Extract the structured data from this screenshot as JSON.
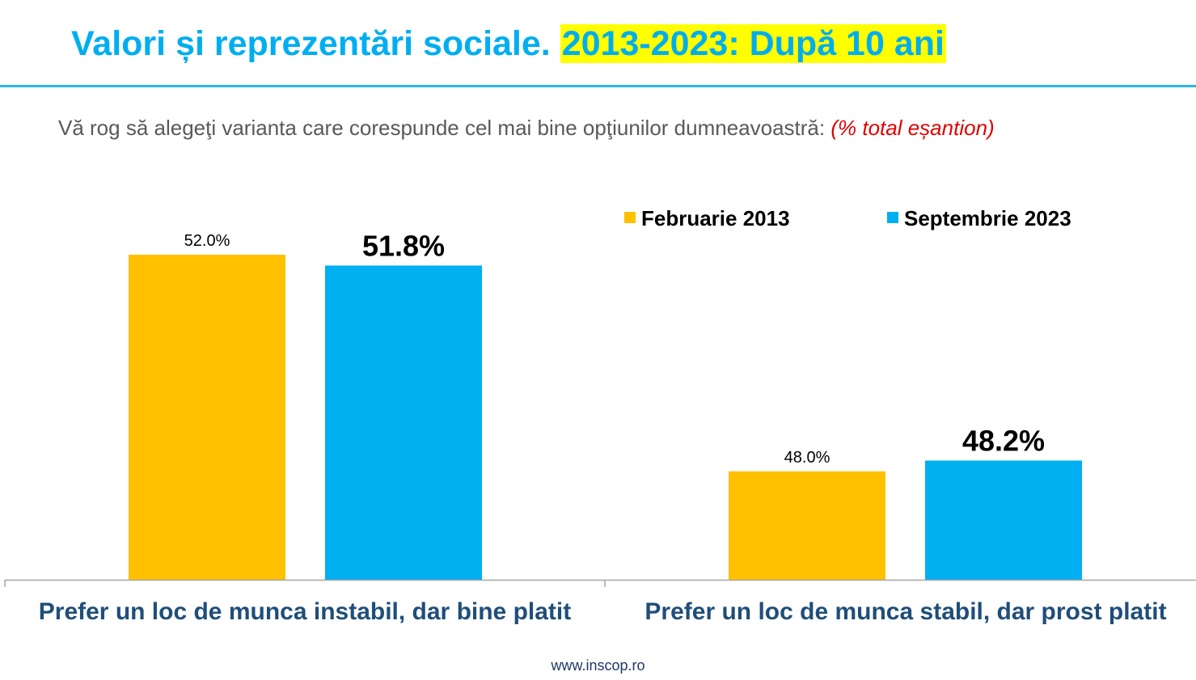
{
  "header": {
    "title_main": "Valori și reprezentări sociale.",
    "title_highlight": "2013-2023: După 10 ani",
    "question": "Vă rog să alegeţi varianta care corespunde cel mai bine opţiunilor dumneavoastră:",
    "question_note": "(% total eșantion)"
  },
  "footer": {
    "url": "www.inscop.ro"
  },
  "colors": {
    "title": "#00AEEF",
    "highlight": "#FFFF00",
    "series_2013": "#FFC000",
    "series_2023": "#00B0F0",
    "category_label": "#1F4E79",
    "note": "#E00000"
  },
  "chart_data": {
    "type": "bar",
    "categories": [
      "Prefer un loc de munca instabil, dar bine platit",
      "Prefer un loc de munca stabil, dar prost platit"
    ],
    "series": [
      {
        "name": "Februarie 2013",
        "values": [
          52.0,
          48.0
        ],
        "labels": [
          "52.0%",
          "48.0%"
        ],
        "color": "#FFC000"
      },
      {
        "name": "Septembrie 2023",
        "values": [
          51.8,
          48.2
        ],
        "labels": [
          "51.8%",
          "48.2%"
        ],
        "color": "#00B0F0"
      }
    ],
    "ylim": [
      46,
      53
    ],
    "grid": false,
    "legend": "top-right",
    "unit": "%"
  }
}
